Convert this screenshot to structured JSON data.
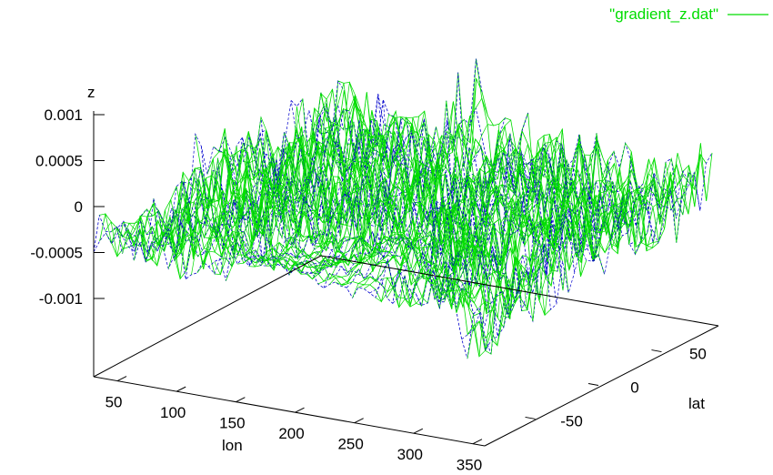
{
  "chart_data": {
    "type": "surface",
    "series": [
      {
        "name": "\"gradient_z.dat\"",
        "color": "#00dd00",
        "hidden_color": "#0000cc",
        "line_style": "solid"
      }
    ],
    "axes": {
      "x": {
        "label": "lon",
        "ticks": [
          "50",
          "100",
          "150",
          "200",
          "250",
          "300",
          "350"
        ],
        "range": [
          30,
          360
        ]
      },
      "y": {
        "label": "lat",
        "ticks": [
          "-50",
          "0",
          "50"
        ],
        "range": [
          -90,
          90
        ]
      },
      "z": {
        "label": "z",
        "ticks": [
          "0.001",
          "0.0005",
          "0",
          "-0.0005",
          "-0.001"
        ],
        "range": [
          -0.0015,
          0.001
        ]
      }
    },
    "grid": false,
    "legend_position": "top-right"
  }
}
